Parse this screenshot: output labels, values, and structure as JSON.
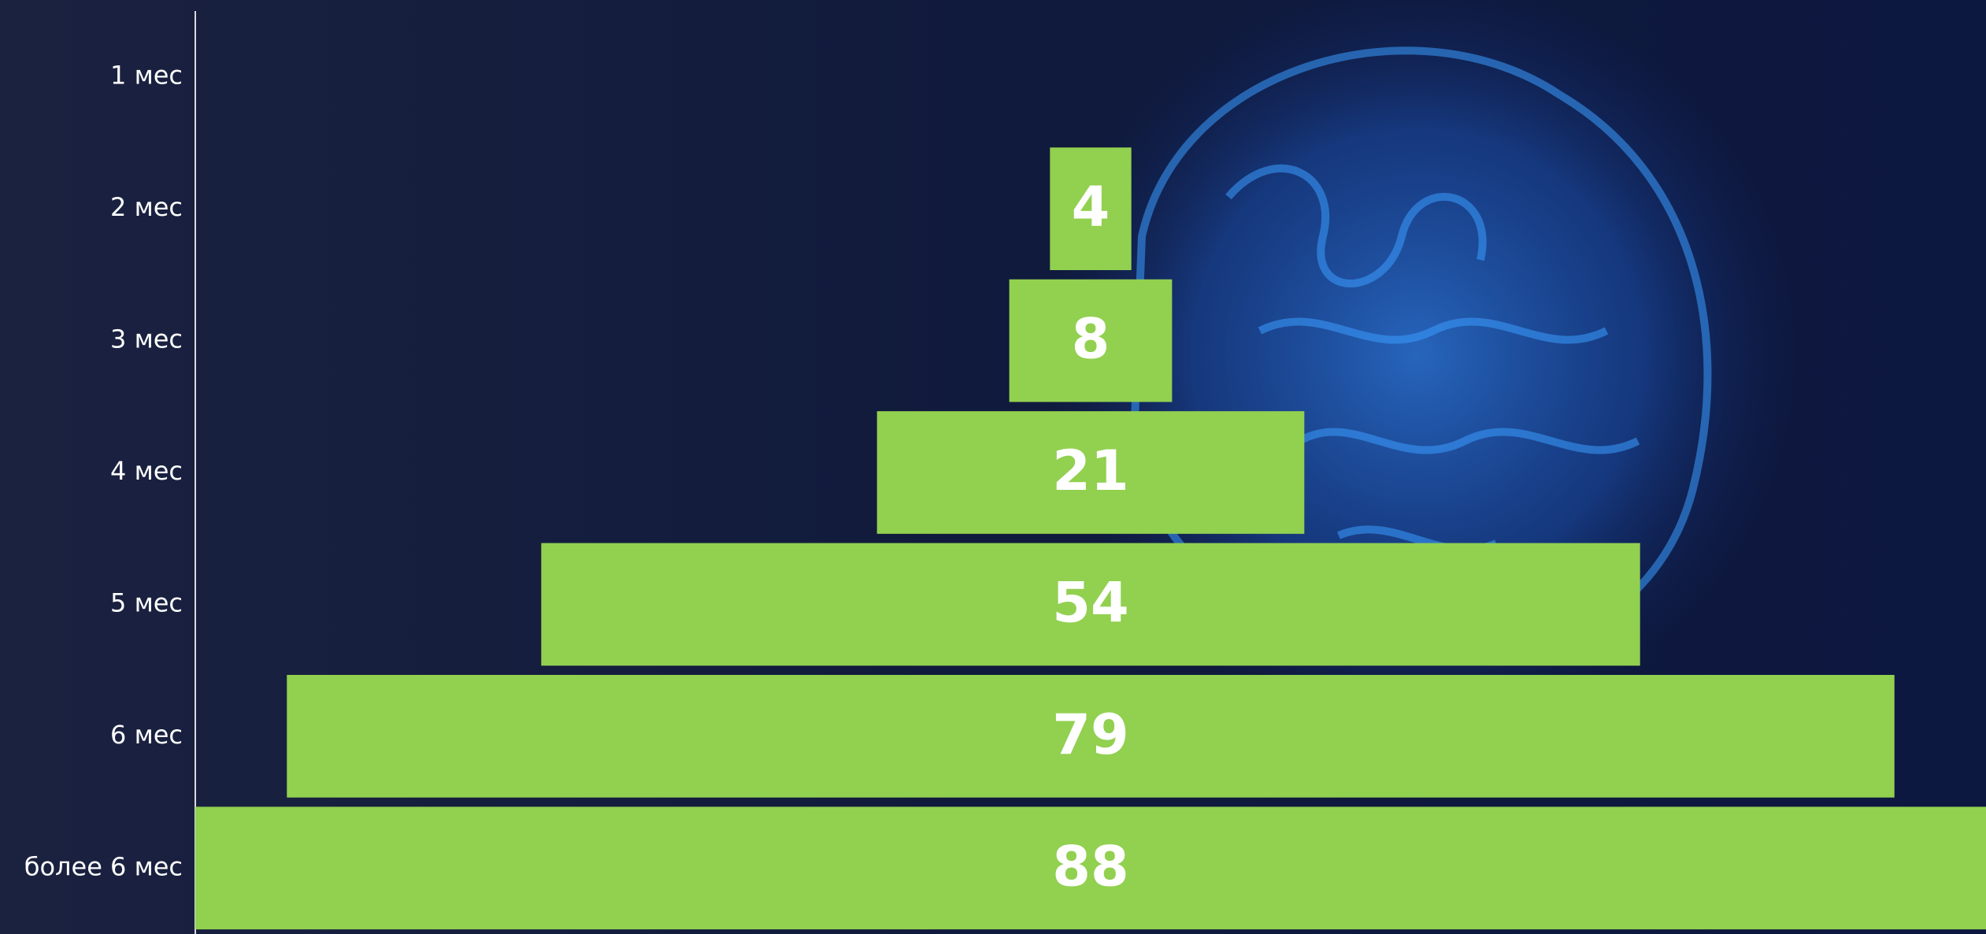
{
  "chart_data": {
    "type": "funnel",
    "categories": [
      "1 мес",
      "2 мес",
      "3 мес",
      "4 мес",
      "5 мес",
      "6 мес",
      "более 6 мес"
    ],
    "values": [
      null,
      4,
      8,
      21,
      54,
      79,
      88
    ],
    "color": "#92d050"
  }
}
